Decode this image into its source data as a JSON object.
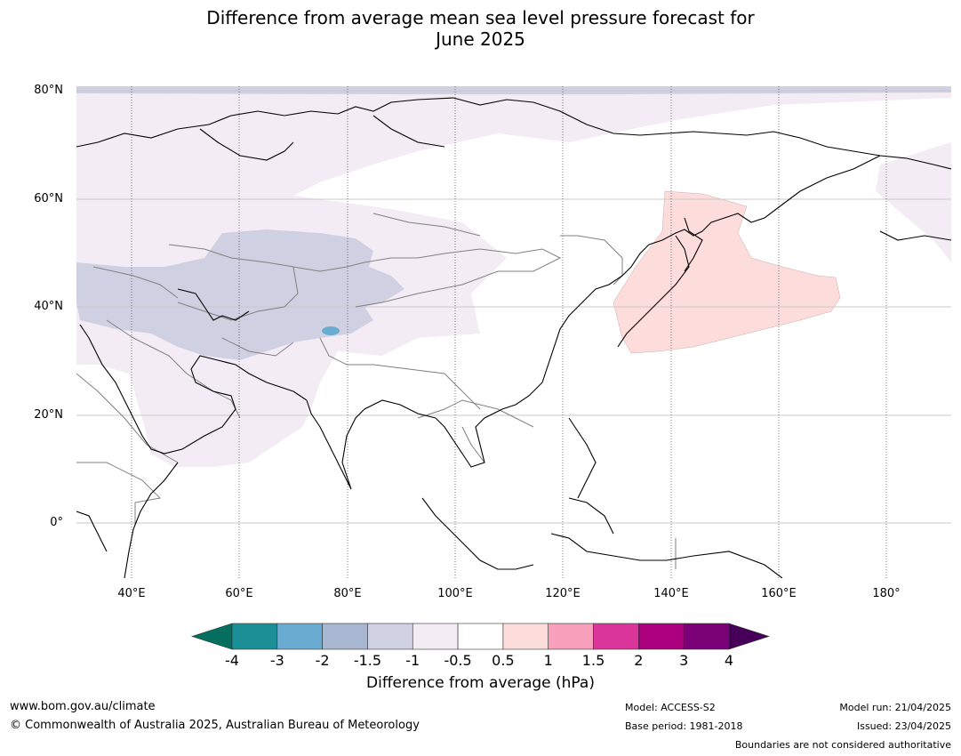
{
  "title_line1": "Difference from average mean sea level pressure forecast for",
  "title_line2": "June 2025",
  "map": {
    "lat_labels": [
      {
        "text": "80°N",
        "lat": 80
      },
      {
        "text": "60°N",
        "lat": 60
      },
      {
        "text": "40°N",
        "lat": 40
      },
      {
        "text": "20°N",
        "lat": 20
      },
      {
        "text": "0°",
        "lat": 0
      }
    ],
    "lon_labels": [
      {
        "text": "40°E",
        "lon": 40
      },
      {
        "text": "60°E",
        "lon": 60
      },
      {
        "text": "80°E",
        "lon": 80
      },
      {
        "text": "100°E",
        "lon": 100
      },
      {
        "text": "120°E",
        "lon": 120
      },
      {
        "text": "140°E",
        "lon": 140
      },
      {
        "text": "160°E",
        "lon": 160
      },
      {
        "text": "180°",
        "lon": 180
      }
    ],
    "lon_range": [
      30,
      192
    ],
    "lat_range": [
      -10,
      81
    ]
  },
  "colorbar": {
    "ticks": [
      "-4",
      "-3",
      "-2",
      "-1.5",
      "-1",
      "-0.5",
      "0.5",
      "1",
      "1.5",
      "2",
      "3",
      "4"
    ],
    "colors": [
      "#1a8f96",
      "#6aabd1",
      "#a9b6d2",
      "#d0d0e3",
      "#f3ecf5",
      "#ffffff",
      "#fddcdc",
      "#f8a0bb",
      "#d9359a",
      "#ad007f",
      "#7a0176"
    ],
    "under_color": "#046f5f",
    "over_color": "#47005a",
    "label": "Difference from average (hPa)"
  },
  "footer": {
    "website": "www.bom.gov.au/climate",
    "copyright": "© Commonwealth of Australia 2025, Australian Bureau of Meteorology",
    "model": "Model: ACCESS-S2",
    "base_period": "Base period: 1981-2018",
    "model_run": "Model run: 21/04/2025",
    "issued": "Issued: 23/04/2025",
    "disclaimer": "Boundaries are not considered authoritative"
  }
}
